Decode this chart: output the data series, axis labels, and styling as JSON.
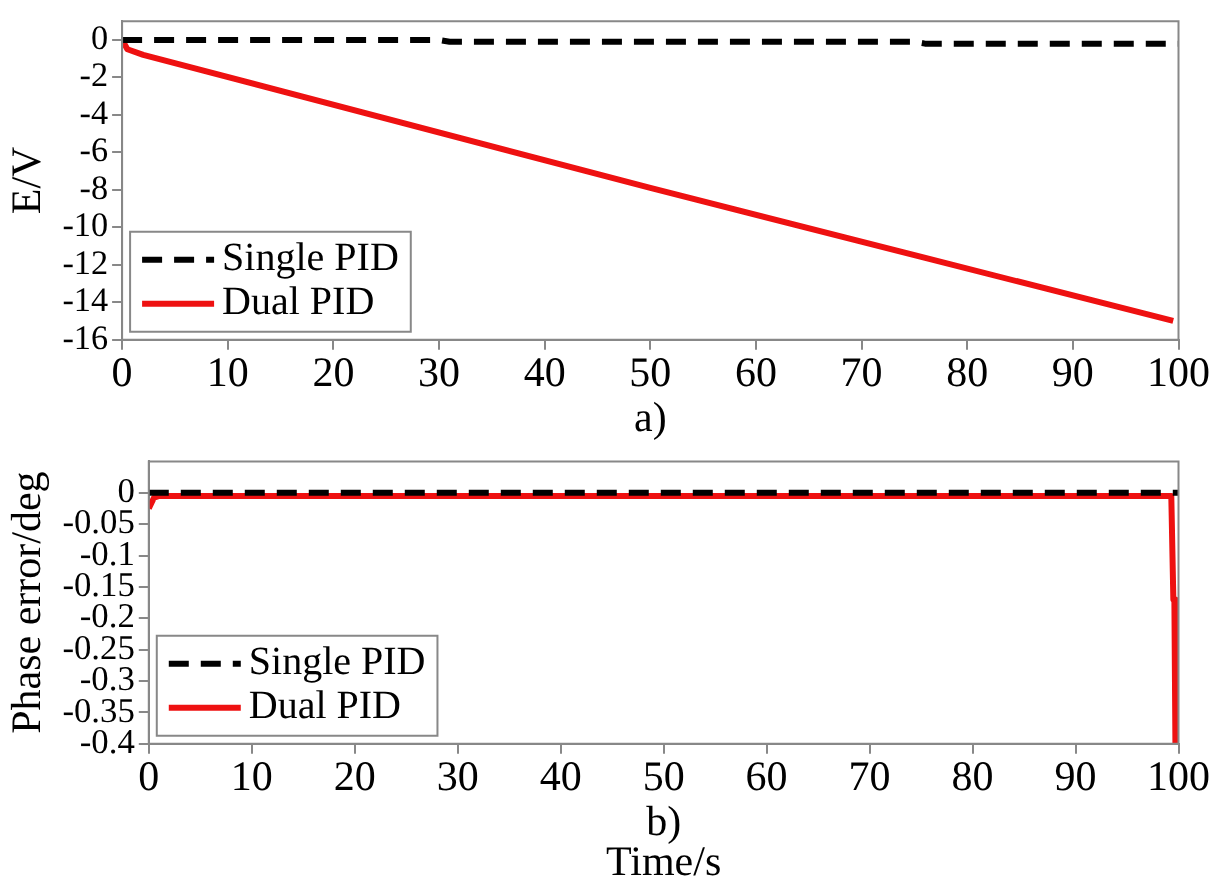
{
  "chart_data": [
    {
      "type": "line",
      "ylabel": "E/V",
      "annotations": [
        "a)"
      ],
      "xlim": [
        0,
        100
      ],
      "xticks": [
        0,
        10,
        20,
        30,
        40,
        50,
        60,
        70,
        80,
        90,
        100
      ],
      "ylim": [
        -16,
        1
      ],
      "yticks": [
        0,
        -2,
        -4,
        -6,
        -8,
        -10,
        -12,
        -14,
        -16
      ],
      "grid": false,
      "legend": "bottom left",
      "series": [
        {
          "name": "Single PID",
          "color": "#000000",
          "line_style": "dashed",
          "x": [
            0,
            30,
            31,
            75,
            76,
            100
          ],
          "values": [
            0,
            0,
            -0.1,
            -0.1,
            -0.2,
            -0.2
          ]
        },
        {
          "name": "Dual PID",
          "color": "#ee1111",
          "line_style": "solid",
          "x": [
            0,
            0.5,
            2,
            50,
            99.5
          ],
          "values": [
            0,
            -0.5,
            -0.8,
            -7.9,
            -15
          ]
        }
      ]
    },
    {
      "type": "line",
      "ylabel": "Phase error/deg",
      "xlabel": "Time/s",
      "annotations": [
        "b)"
      ],
      "xlim": [
        0,
        100
      ],
      "xticks": [
        0,
        10,
        20,
        30,
        40,
        50,
        60,
        70,
        80,
        90,
        100
      ],
      "ylim": [
        -0.4,
        0.05
      ],
      "yticks": [
        0,
        -0.05,
        -0.1,
        -0.15,
        -0.2,
        -0.25,
        -0.3,
        -0.35,
        -0.4
      ],
      "grid": false,
      "legend": "bottom left",
      "series": [
        {
          "name": "Single PID",
          "color": "#000000",
          "line_style": "dashed",
          "x": [
            0,
            100
          ],
          "values": [
            0,
            0
          ]
        },
        {
          "name": "Dual PID",
          "color": "#ee1111",
          "line_style": "solid",
          "x": [
            0,
            0.5,
            1,
            99.3,
            99.5,
            99.6,
            99.7
          ],
          "values": [
            -0.025,
            -0.008,
            -0.005,
            -0.005,
            -0.17,
            -0.17,
            -0.4
          ]
        }
      ]
    }
  ]
}
